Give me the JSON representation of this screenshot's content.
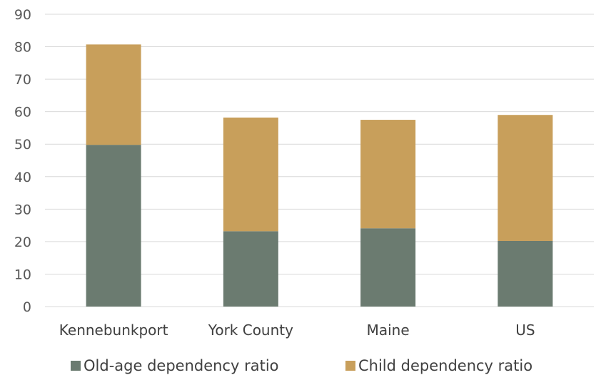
{
  "chart_data": {
    "type": "bar",
    "stacked": true,
    "categories": [
      "Kennebunkport",
      "York County",
      "Maine",
      "US"
    ],
    "series": [
      {
        "name": "Old-age dependency ratio",
        "values": [
          49.8,
          23.2,
          24.1,
          20.2
        ],
        "color": "#6b7b70"
      },
      {
        "name": "Child dependency ratio",
        "values": [
          30.9,
          35.0,
          33.4,
          38.8
        ],
        "color": "#c89f5b"
      }
    ],
    "ylim": [
      0,
      90
    ],
    "yticks": [
      0,
      10,
      20,
      30,
      40,
      50,
      60,
      70,
      80,
      90
    ],
    "grid": true,
    "legend_position": "bottom"
  }
}
